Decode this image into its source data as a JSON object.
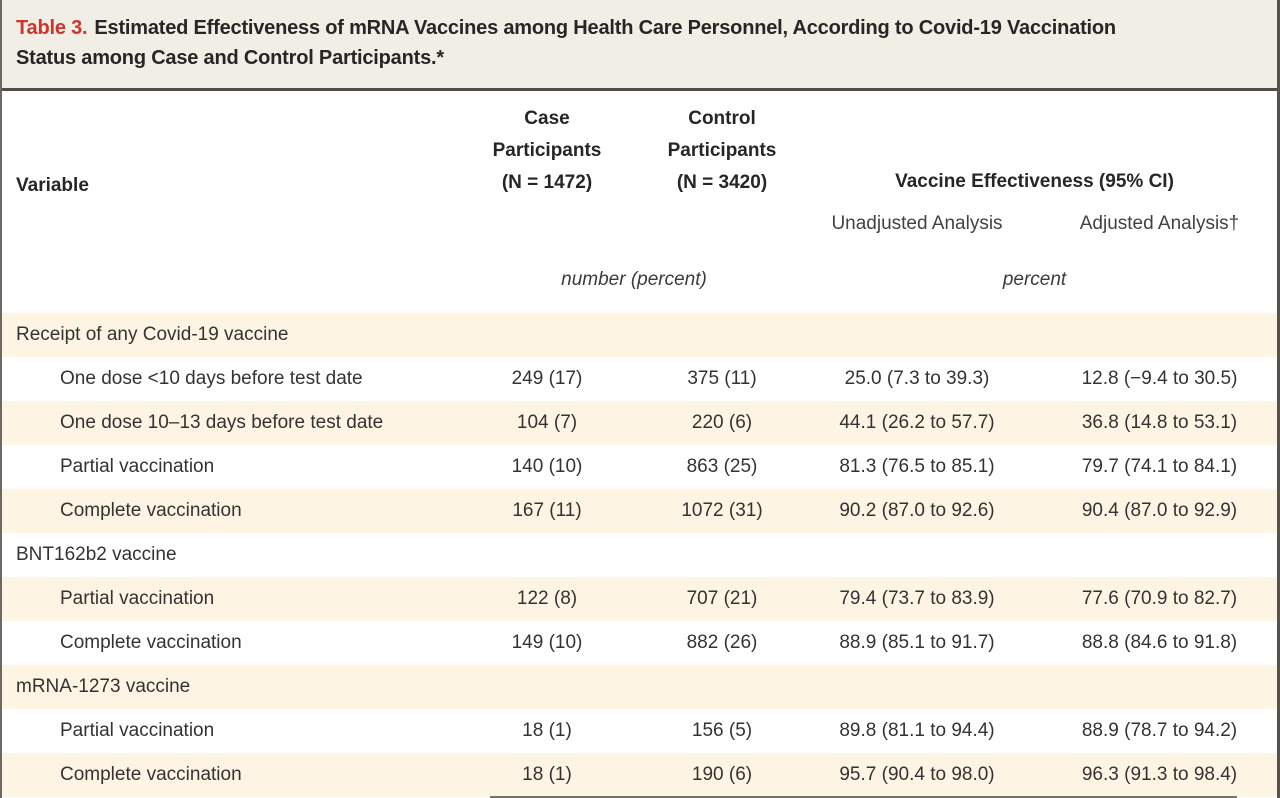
{
  "title": {
    "label": "Table 3.",
    "line1": "Estimated Effectiveness of mRNA Vaccines among Health Care Personnel, According to Covid-19 Vaccination",
    "line2": "Status among Case and Control Participants.*"
  },
  "header": {
    "variable": "Variable",
    "case": {
      "l1": "Case",
      "l2": "Participants",
      "l3": "(N = 1472)"
    },
    "control": {
      "l1": "Control",
      "l2": "Participants",
      "l3": "(N = 3420)"
    },
    "effectiveness_group": "Vaccine Effectiveness (95% CI)",
    "unadjusted": "Unadjusted Analysis",
    "adjusted": "Adjusted Analysis†",
    "units_counts": "number (percent)",
    "units_effectiveness": "percent"
  },
  "rows": [
    {
      "label": "Receipt of any Covid-19 vaccine",
      "section": true,
      "shaded": true,
      "case": "",
      "control": "",
      "unadjusted": "",
      "adjusted": ""
    },
    {
      "label": "One dose <10 days before test date",
      "section": false,
      "shaded": false,
      "case": "249 (17)",
      "control": "375 (11)",
      "unadjusted": "25.0 (7.3 to 39.3)",
      "adjusted": "12.8 (−9.4 to 30.5)"
    },
    {
      "label": "One dose 10–13 days before test date",
      "section": false,
      "shaded": true,
      "case": "104 (7)",
      "control": "220 (6)",
      "unadjusted": "44.1 (26.2 to 57.7)",
      "adjusted": "36.8 (14.8 to 53.1)"
    },
    {
      "label": "Partial vaccination",
      "section": false,
      "shaded": false,
      "case": "140 (10)",
      "control": "863 (25)",
      "unadjusted": "81.3 (76.5 to 85.1)",
      "adjusted": "79.7 (74.1 to 84.1)"
    },
    {
      "label": "Complete vaccination",
      "section": false,
      "shaded": true,
      "case": "167 (11)",
      "control": "1072 (31)",
      "unadjusted": "90.2 (87.0 to 92.6)",
      "adjusted": "90.4 (87.0 to 92.9)"
    },
    {
      "label": "BNT162b2 vaccine",
      "section": true,
      "shaded": false,
      "case": "",
      "control": "",
      "unadjusted": "",
      "adjusted": ""
    },
    {
      "label": "Partial vaccination",
      "section": false,
      "shaded": true,
      "case": "122 (8)",
      "control": "707 (21)",
      "unadjusted": "79.4 (73.7 to 83.9)",
      "adjusted": "77.6 (70.9 to 82.7)"
    },
    {
      "label": "Complete vaccination",
      "section": false,
      "shaded": false,
      "case": "149 (10)",
      "control": "882 (26)",
      "unadjusted": "88.9 (85.1 to 91.7)",
      "adjusted": "88.8 (84.6 to 91.8)"
    },
    {
      "label": "mRNA-1273 vaccine",
      "section": true,
      "shaded": true,
      "case": "",
      "control": "",
      "unadjusted": "",
      "adjusted": ""
    },
    {
      "label": "Partial vaccination",
      "section": false,
      "shaded": false,
      "case": "18 (1)",
      "control": "156 (5)",
      "unadjusted": "89.8 (81.1 to 94.4)",
      "adjusted": "88.9 (78.7 to 94.2)"
    },
    {
      "label": "Complete vaccination",
      "section": false,
      "shaded": true,
      "case": "18 (1)",
      "control": "190 (6)",
      "unadjusted": "95.7 (90.4 to 98.0)",
      "adjusted": "96.3 (91.3 to 98.4)"
    }
  ],
  "colors": {
    "accent_red": "#ce352b",
    "shaded_row": "#fdf4e4",
    "title_background": "#f1eee6",
    "rule": "#4f4d46"
  }
}
